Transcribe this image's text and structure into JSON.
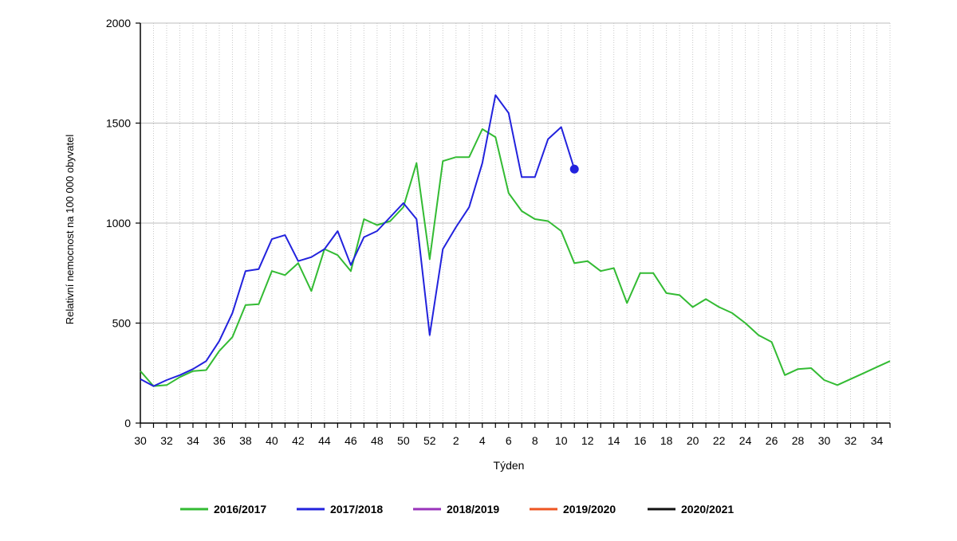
{
  "chart_data": {
    "type": "line",
    "title": "",
    "xlabel": "Týden",
    "ylabel": "Relativní nemocnost na 100 000 obyvatel",
    "ylim": [
      0,
      2000
    ],
    "yticks": [
      0,
      500,
      1000,
      1500,
      2000
    ],
    "grid": true,
    "legend_position": "bottom",
    "weeks": [
      30,
      31,
      32,
      33,
      34,
      35,
      36,
      37,
      38,
      39,
      40,
      41,
      42,
      43,
      44,
      45,
      46,
      47,
      48,
      49,
      50,
      51,
      52,
      1,
      2,
      3,
      4,
      5,
      6,
      7,
      8,
      9,
      10,
      11,
      12,
      13,
      14,
      15,
      16,
      17,
      18,
      19,
      20,
      21,
      22,
      23,
      24,
      25,
      26,
      27,
      28,
      29,
      30,
      31,
      32,
      33,
      34,
      35
    ],
    "xtick_labels": [
      "30",
      "32",
      "34",
      "36",
      "38",
      "40",
      "42",
      "44",
      "46",
      "48",
      "50",
      "52",
      "2",
      "4",
      "6",
      "8",
      "10",
      "12",
      "14",
      "16",
      "18",
      "20",
      "22",
      "24",
      "26",
      "28",
      "30",
      "32",
      "34"
    ],
    "series": [
      {
        "name": "2016/2017",
        "color": "#33bb33",
        "values": [
          260,
          185,
          190,
          230,
          260,
          265,
          360,
          430,
          590,
          595,
          760,
          740,
          800,
          660,
          870,
          840,
          760,
          1020,
          990,
          1010,
          1080,
          1300,
          820,
          1310,
          1330,
          1330,
          1470,
          1430,
          1150,
          1060,
          1020,
          1010,
          960,
          800,
          810,
          760,
          775,
          600,
          750,
          750,
          650,
          640,
          580,
          620,
          580,
          550,
          500,
          440,
          405,
          240,
          270,
          275,
          215,
          190,
          220,
          250,
          280,
          310
        ],
        "marker_last": false
      },
      {
        "name": "2017/2018",
        "color": "#2222dd",
        "values": [
          220,
          185,
          215,
          240,
          270,
          310,
          410,
          550,
          760,
          770,
          920,
          940,
          810,
          830,
          870,
          960,
          790,
          930,
          960,
          1030,
          1100,
          1020,
          440,
          870,
          980,
          1080,
          1300,
          1640,
          1550,
          1230,
          1230,
          1420,
          1480,
          1270
        ],
        "marker_last": true
      },
      {
        "name": "2018/2019",
        "color": "#9933bb",
        "values": []
      },
      {
        "name": "2019/2020",
        "color": "#ee5522",
        "values": []
      },
      {
        "name": "2020/2021",
        "color": "#111111",
        "values": []
      }
    ]
  }
}
